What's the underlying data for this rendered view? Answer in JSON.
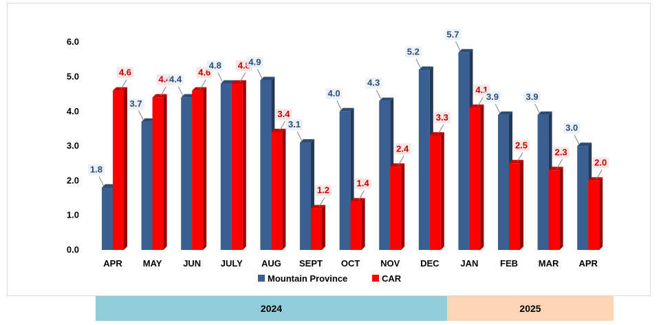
{
  "chart_data": {
    "type": "bar",
    "categories": [
      "APR",
      "MAY",
      "JUN",
      "JULY",
      "AUG",
      "SEPT",
      "OCT",
      "NOV",
      "DEC",
      "JAN",
      "FEB",
      "MAR",
      "APR"
    ],
    "series": [
      {
        "name": "Mountain Province",
        "color": "#3a5f91",
        "values": [
          1.8,
          3.7,
          4.4,
          4.8,
          4.9,
          3.1,
          4.0,
          4.3,
          5.2,
          5.7,
          3.9,
          3.9,
          3.0
        ]
      },
      {
        "name": "CAR",
        "color": "#ff0000",
        "values": [
          4.6,
          4.4,
          4.6,
          4.8,
          3.4,
          1.2,
          1.4,
          2.4,
          3.3,
          4.1,
          2.5,
          2.3,
          2.0
        ]
      }
    ],
    "yticks": [
      "0.0",
      "1.0",
      "2.0",
      "3.0",
      "4.0",
      "5.0",
      "6.0"
    ],
    "ylim": [
      0,
      6
    ],
    "grid": false,
    "legend_position": "bottom",
    "year_groups": [
      {
        "label": "2024",
        "color": "#92cddc"
      },
      {
        "label": "2025",
        "color": "#fcd5b4"
      }
    ]
  }
}
